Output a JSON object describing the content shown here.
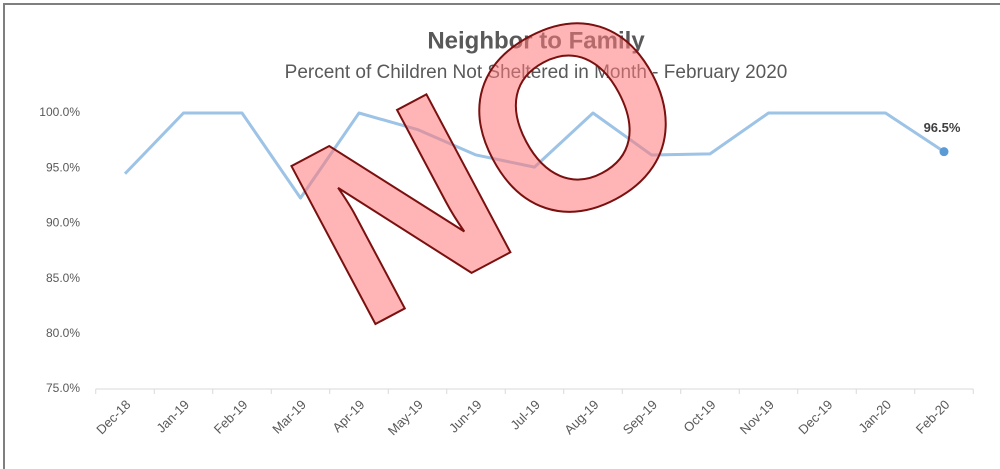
{
  "chart_data": {
    "type": "line",
    "title": "Neighbor to Family",
    "subtitle": "Percent of Children Not Sheltered in Month - February 2020",
    "categories": [
      "Dec-18",
      "Jan-19",
      "Feb-19",
      "Mar-19",
      "Apr-19",
      "May-19",
      "Jun-19",
      "Jul-19",
      "Aug-19",
      "Sep-19",
      "Oct-19",
      "Nov-19",
      "Dec-19",
      "Jan-20",
      "Feb-20"
    ],
    "series": [
      {
        "name": "Percent of Children Not Sheltered",
        "color": "#9dc3e6",
        "values": [
          94.5,
          100,
          100,
          92.3,
          100,
          98.5,
          96.2,
          95.1,
          100,
          96.2,
          96.3,
          100,
          100,
          100,
          96.5
        ],
        "value_labels": [
          null,
          null,
          null,
          null,
          null,
          null,
          null,
          null,
          null,
          null,
          null,
          null,
          null,
          null,
          "96.5%"
        ]
      }
    ],
    "ylim": [
      75,
      100
    ],
    "yticks": [
      {
        "value": 75,
        "label": "75.0%"
      },
      {
        "value": 80,
        "label": "80.0%"
      },
      {
        "value": 85,
        "label": "85.0%"
      },
      {
        "value": 90,
        "label": "90.0%"
      },
      {
        "value": 95,
        "label": "95.0%"
      },
      {
        "value": 100,
        "label": "100.0%"
      }
    ],
    "grid": false,
    "annotations": [
      "NO"
    ]
  }
}
